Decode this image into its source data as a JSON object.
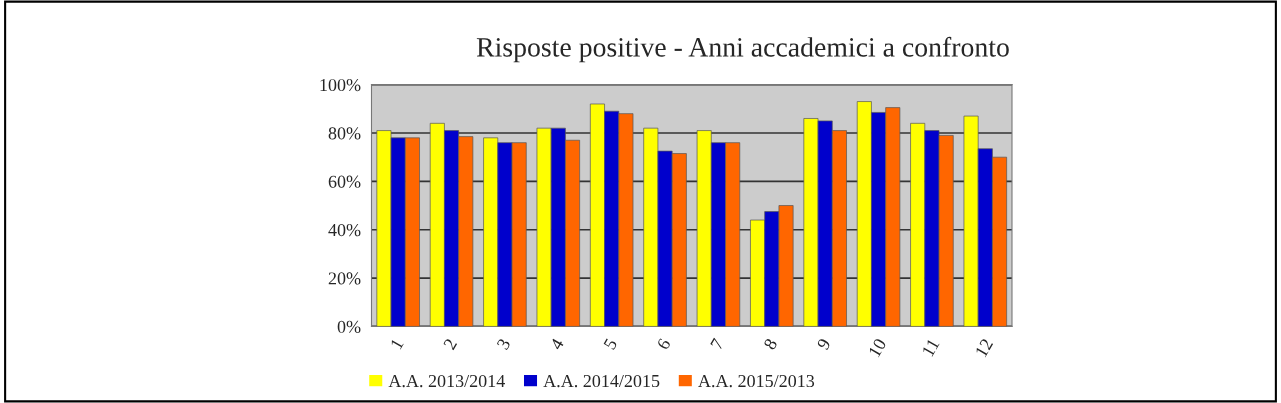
{
  "chart_data": {
    "type": "bar",
    "title": "Risposte positive - Anni accademici a confronto",
    "categories": [
      "1",
      "2",
      "3",
      "4",
      "5",
      "6",
      "7",
      "8",
      "9",
      "10",
      "11",
      "12"
    ],
    "series": [
      {
        "name": "A.A. 2013/2014",
        "color": "#ffff00",
        "values": [
          81,
          84,
          78,
          82,
          92,
          82,
          81,
          44,
          86,
          93,
          84,
          87
        ]
      },
      {
        "name": "A.A. 2014/2015",
        "color": "#0000cc",
        "values": [
          78,
          81,
          76,
          82,
          89,
          72.5,
          76,
          47.5,
          85,
          88.5,
          81,
          73.5
        ]
      },
      {
        "name": "A.A. 2015/2013",
        "color": "#ff6600",
        "values": [
          78,
          78.5,
          76,
          77,
          88,
          71.5,
          76,
          50,
          81,
          90.5,
          79,
          70
        ]
      }
    ],
    "ylim": [
      0,
      100
    ],
    "yticks": [
      {
        "value": 0,
        "label": "0%"
      },
      {
        "value": 20,
        "label": "20%"
      },
      {
        "value": 40,
        "label": "40%"
      },
      {
        "value": 60,
        "label": "60%"
      },
      {
        "value": 80,
        "label": "80%"
      },
      {
        "value": 100,
        "label": "100%"
      }
    ],
    "grid": "y",
    "legend": "bottom"
  }
}
